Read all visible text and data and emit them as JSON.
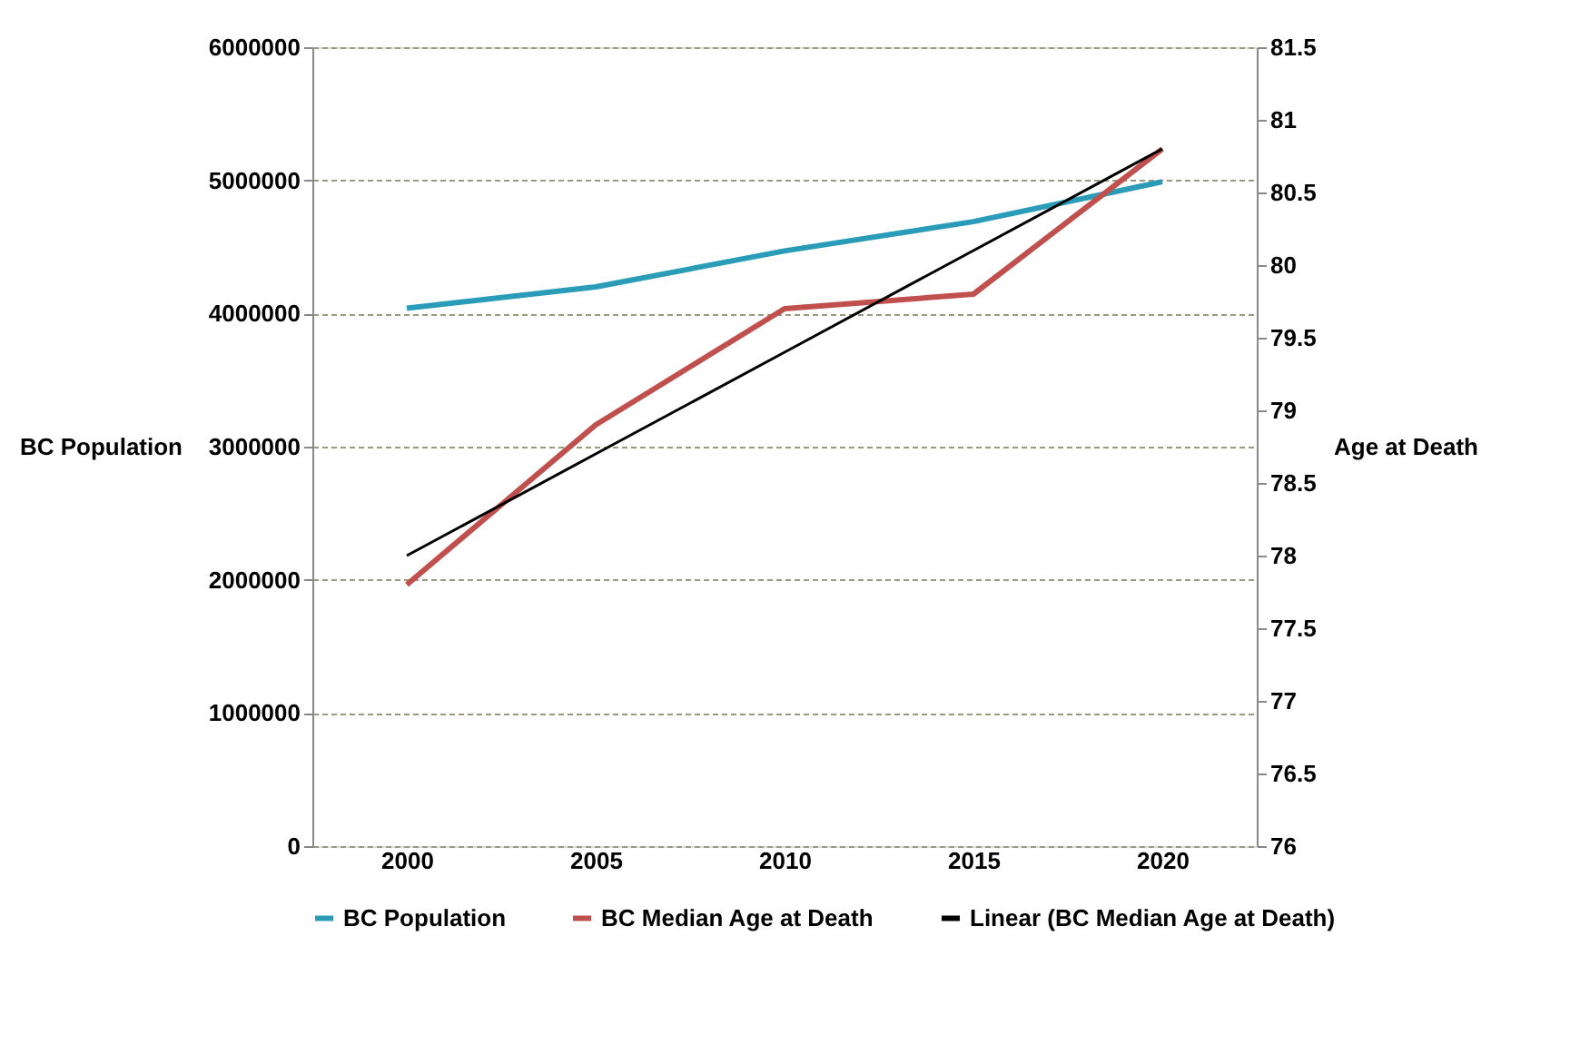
{
  "chart_data": {
    "type": "line",
    "ylabel": "BC Population",
    "y2label": "Age at Death",
    "categories": [
      "2000",
      "2005",
      "2010",
      "2015",
      "2020"
    ],
    "series": [
      {
        "name": "BC Population",
        "color": "#2a9cb8",
        "values": [
          4040000,
          4200000,
          4470000,
          4690000,
          4990000
        ]
      },
      {
        "name": "BC Median Age at Death",
        "color": "#c0504d",
        "axis": "y2",
        "values": [
          77.8,
          78.9,
          79.7,
          79.8,
          80.8
        ]
      },
      {
        "name": "Linear (BC Median Age at Death)",
        "color": "#000000",
        "axis": "y2",
        "values": [
          78.0,
          78.7,
          79.4,
          80.1,
          80.8
        ]
      }
    ],
    "ylim": [
      0,
      6000000
    ],
    "yticks": [
      0,
      1000000,
      2000000,
      3000000,
      4000000,
      5000000,
      6000000
    ],
    "y2lim": [
      76,
      81.5
    ],
    "y2ticks": [
      76,
      76.5,
      77,
      77.5,
      78,
      78.5,
      79,
      79.5,
      80,
      80.5,
      81,
      81.5
    ],
    "grid": "y",
    "legend": "bottom",
    "marker": "none",
    "line_style": "solid"
  }
}
